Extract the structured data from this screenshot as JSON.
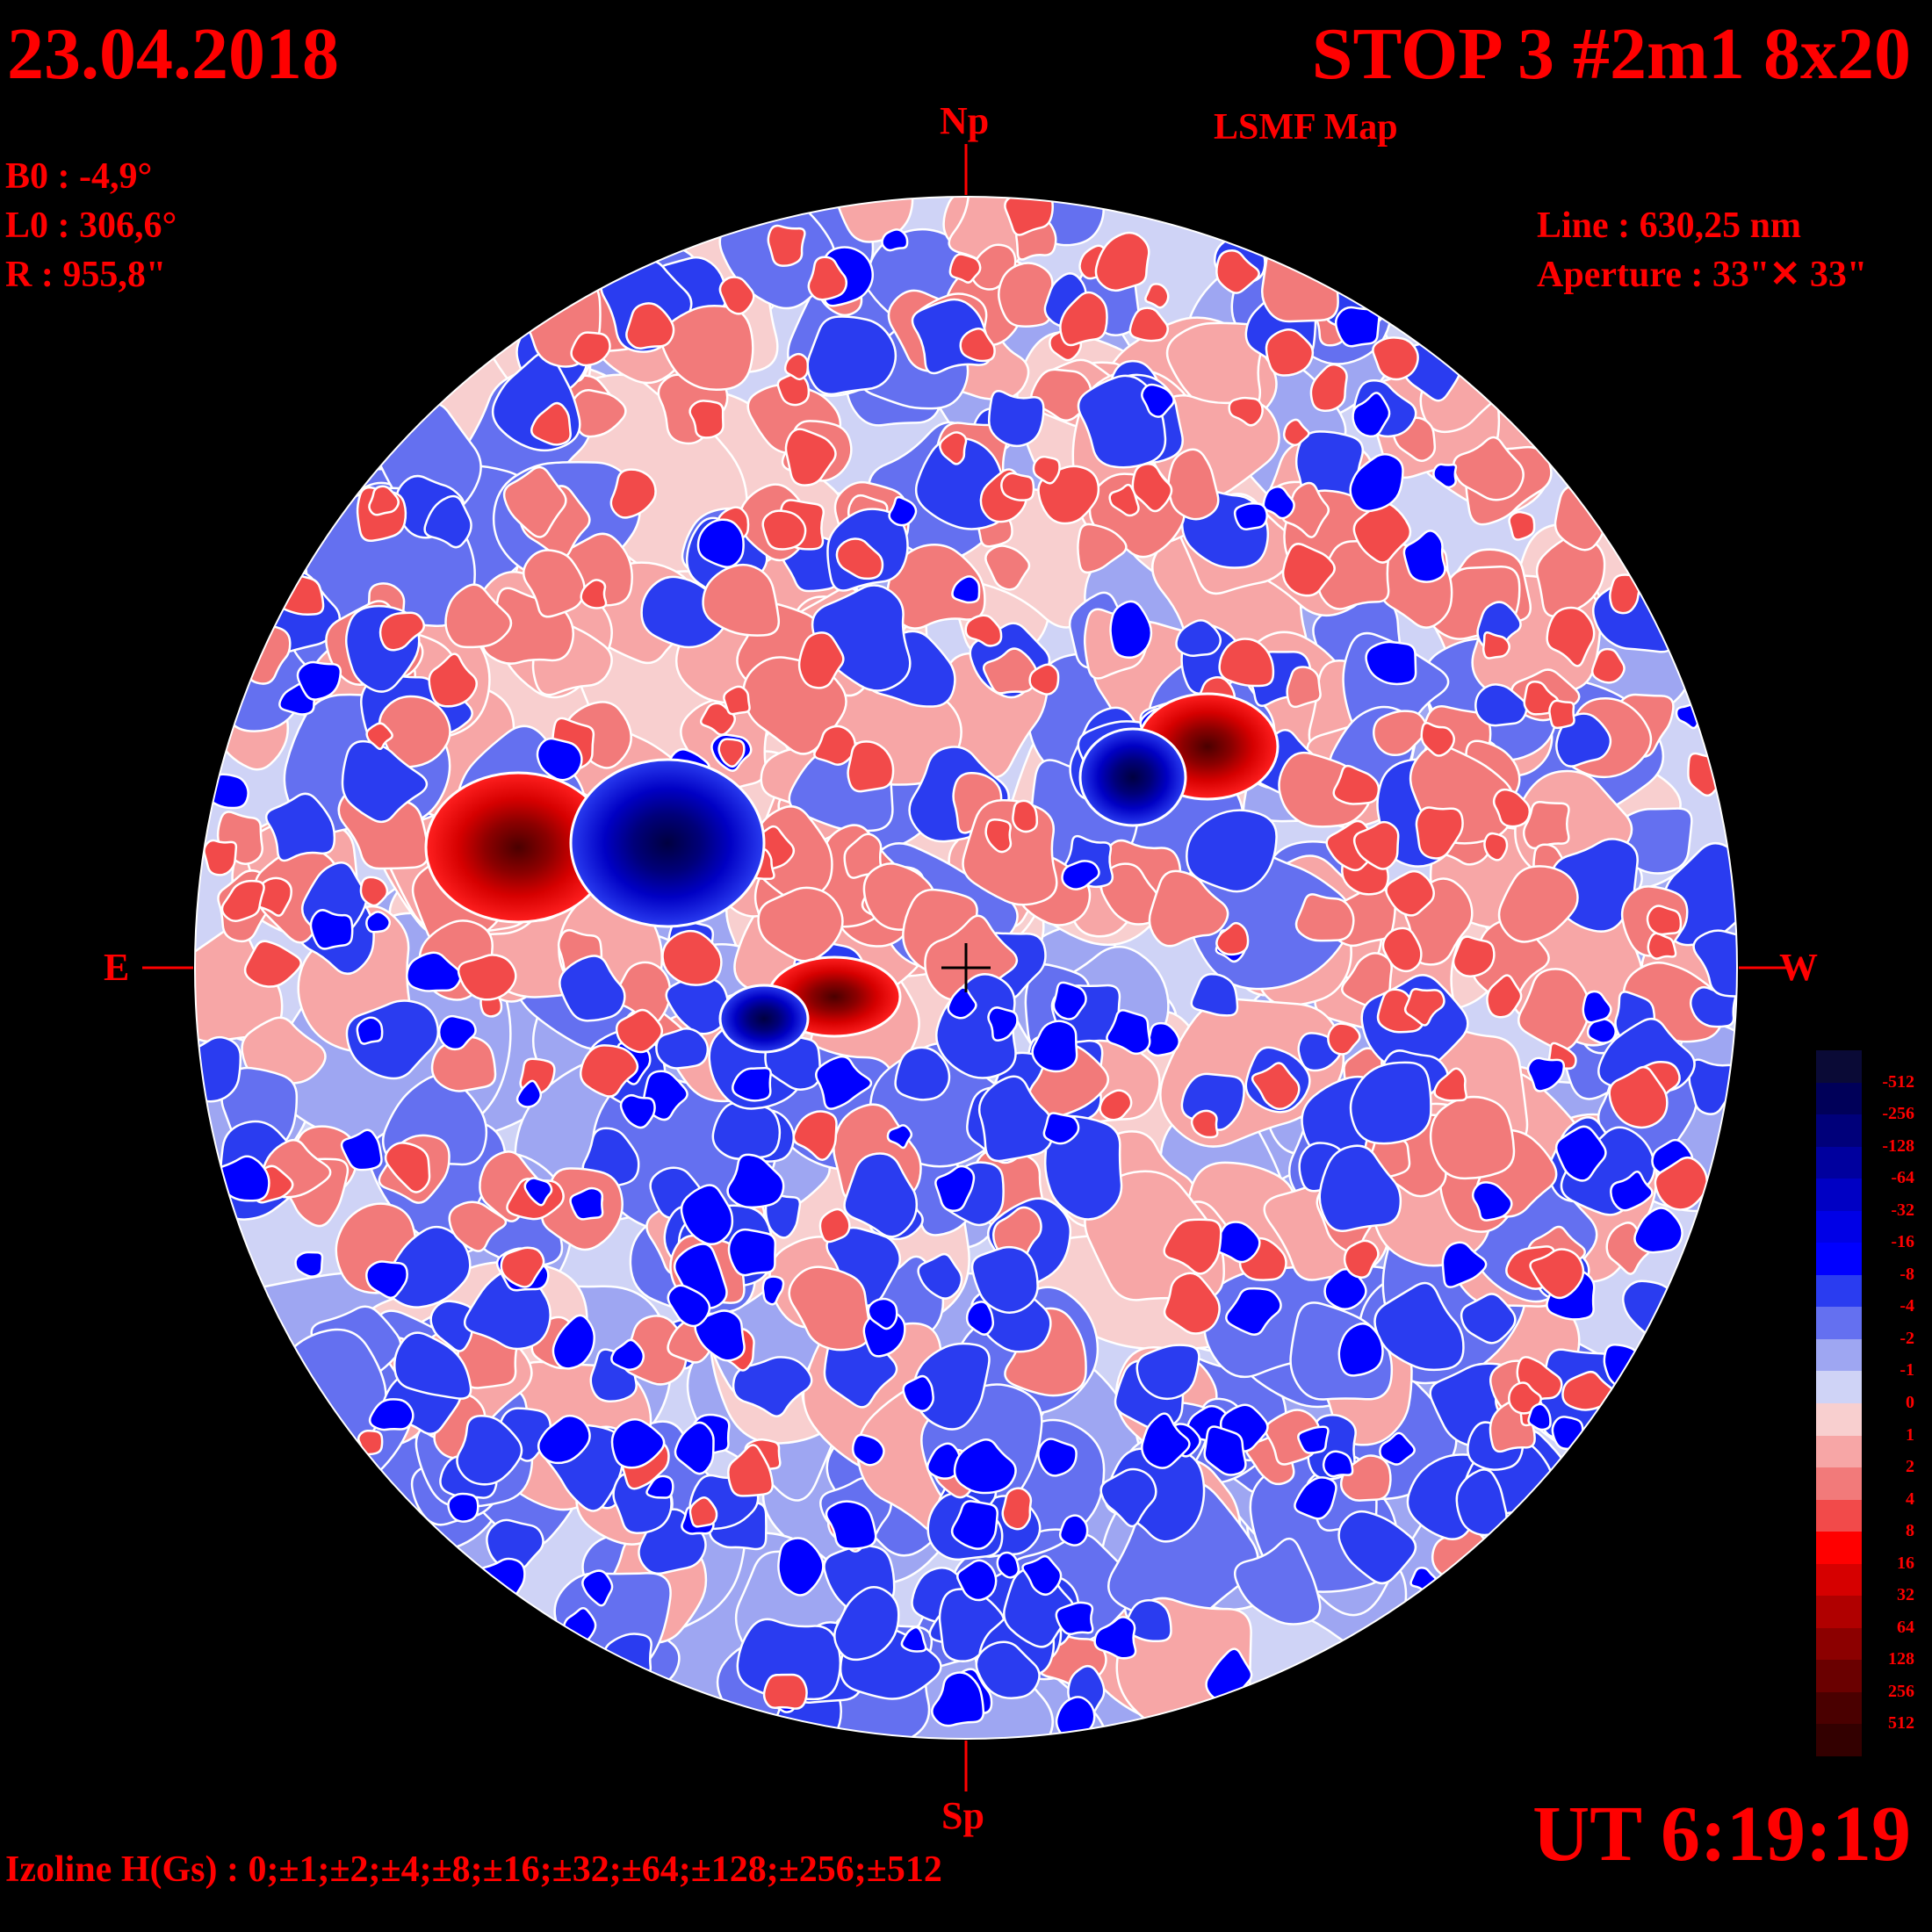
{
  "header": {
    "date": "23.04.2018",
    "title": "STOP 3 #2m1 8x20",
    "subtitle": "LSMF  Map"
  },
  "params": {
    "b0": "B0 : -4,9°",
    "l0": "L0 : 306,6°",
    "r": "R  : 955,8\""
  },
  "instrument": {
    "line": "Line :  630,25 nm",
    "aperture": "Aperture : 33\"✕ 33\""
  },
  "directions": {
    "north": "Np",
    "south": "Sp",
    "east": "E",
    "west": "W"
  },
  "time": "UT 6:19:19",
  "izoline": "Izoline H(Gs) : 0;±1;±2;±4;±8;±16;±32;±64;±128;±256;±512",
  "legend": {
    "levels": [
      "-512",
      "-256",
      "-128",
      "-64",
      "-32",
      "-16",
      "-8",
      "-4",
      "-2",
      "-1",
      "0",
      "1",
      "2",
      "4",
      "8",
      "16",
      "32",
      "64",
      "128",
      "256",
      "512"
    ],
    "colors": [
      "#0a0a36",
      "#000059",
      "#00007a",
      "#00009e",
      "#0000c4",
      "#0000e6",
      "#0000ff",
      "#2a3cf0",
      "#6470f0",
      "#9ea6f2",
      "#cfd3f6",
      "#f8cfcf",
      "#f7a6a6",
      "#f27a7a",
      "#f24a4a",
      "#ff0000",
      "#d60000",
      "#b00000",
      "#8c0000",
      "#6a0000",
      "#4a0000",
      "#330000"
    ]
  },
  "features": [
    {
      "polarity": "positive",
      "strength": 7
    },
    {
      "polarity": "negative",
      "strength": 7
    },
    {
      "polarity": "positive",
      "strength": 5
    },
    {
      "polarity": "negative",
      "strength": 5
    },
    {
      "polarity": "positive",
      "strength": 5
    },
    {
      "polarity": "negative",
      "strength": 5
    }
  ]
}
